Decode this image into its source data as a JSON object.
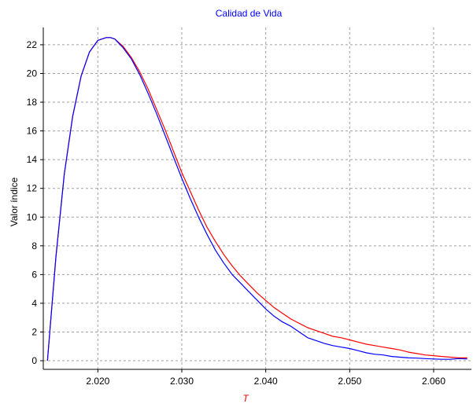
{
  "chart_data": {
    "type": "line",
    "title": "Calidad de Vida",
    "xlabel": "T",
    "ylabel": "Valor índice",
    "xlim": [
      2.0135,
      2.0645
    ],
    "ylim": [
      -0.6,
      23.2
    ],
    "xticks": [
      2.02,
      2.03,
      2.04,
      2.05,
      2.06
    ],
    "xtick_labels": [
      "2.020",
      "2.030",
      "2.040",
      "2.050",
      "2.060"
    ],
    "yticks": [
      0,
      2,
      4,
      6,
      8,
      10,
      12,
      14,
      16,
      18,
      20,
      22
    ],
    "ytick_labels": [
      "0",
      "2",
      "4",
      "6",
      "8",
      "10",
      "12",
      "14",
      "16",
      "18",
      "20",
      "22"
    ],
    "grid": true,
    "colors": {
      "title": "#0000ff",
      "xlabel": "#ff0000",
      "grid": "#a0a0a0",
      "axis": "#000000",
      "text": "#000000"
    },
    "series": [
      {
        "color": "#ff0000",
        "x": [
          2.014,
          2.015,
          2.016,
          2.017,
          2.018,
          2.019,
          2.02,
          2.021,
          2.0215,
          2.022,
          2.023,
          2.024,
          2.025,
          2.026,
          2.027,
          2.028,
          2.029,
          2.03,
          2.031,
          2.032,
          2.033,
          2.034,
          2.035,
          2.036,
          2.037,
          2.038,
          2.039,
          2.04,
          2.041,
          2.042,
          2.043,
          2.044,
          2.045,
          2.046,
          2.047,
          2.048,
          2.049,
          2.05,
          2.051,
          2.052,
          2.053,
          2.054,
          2.055,
          2.056,
          2.057,
          2.058,
          2.059,
          2.06,
          2.061,
          2.062,
          2.063,
          2.064
        ],
        "y": [
          0.0,
          7.2,
          13.0,
          17.0,
          19.8,
          21.5,
          22.3,
          22.5,
          22.5,
          22.4,
          21.9,
          21.1,
          20.1,
          18.9,
          17.5,
          16.1,
          14.6,
          13.1,
          11.8,
          10.5,
          9.3,
          8.3,
          7.4,
          6.6,
          5.9,
          5.3,
          4.7,
          4.2,
          3.7,
          3.3,
          2.9,
          2.6,
          2.3,
          2.1,
          1.9,
          1.7,
          1.6,
          1.45,
          1.3,
          1.15,
          1.05,
          0.95,
          0.85,
          0.75,
          0.6,
          0.5,
          0.4,
          0.35,
          0.3,
          0.25,
          0.2,
          0.2
        ]
      },
      {
        "color": "#0000ff",
        "x": [
          2.014,
          2.015,
          2.016,
          2.017,
          2.018,
          2.019,
          2.02,
          2.021,
          2.0215,
          2.022,
          2.023,
          2.024,
          2.025,
          2.026,
          2.027,
          2.028,
          2.029,
          2.03,
          2.031,
          2.032,
          2.033,
          2.034,
          2.035,
          2.036,
          2.037,
          2.038,
          2.039,
          2.04,
          2.041,
          2.042,
          2.043,
          2.044,
          2.045,
          2.046,
          2.047,
          2.048,
          2.049,
          2.05,
          2.051,
          2.052,
          2.053,
          2.054,
          2.055,
          2.056,
          2.057,
          2.058,
          2.059,
          2.06,
          2.061,
          2.062,
          2.063,
          2.064
        ],
        "y": [
          0.0,
          7.2,
          13.0,
          17.0,
          19.8,
          21.5,
          22.3,
          22.5,
          22.5,
          22.4,
          21.8,
          21.0,
          19.9,
          18.6,
          17.2,
          15.7,
          14.2,
          12.7,
          11.3,
          10.0,
          8.8,
          7.7,
          6.8,
          6.0,
          5.4,
          4.8,
          4.2,
          3.6,
          3.1,
          2.7,
          2.4,
          2.0,
          1.6,
          1.4,
          1.2,
          1.05,
          0.95,
          0.85,
          0.7,
          0.55,
          0.45,
          0.4,
          0.3,
          0.25,
          0.2,
          0.18,
          0.15,
          0.12,
          0.1,
          0.1,
          0.15,
          0.12
        ]
      }
    ]
  }
}
